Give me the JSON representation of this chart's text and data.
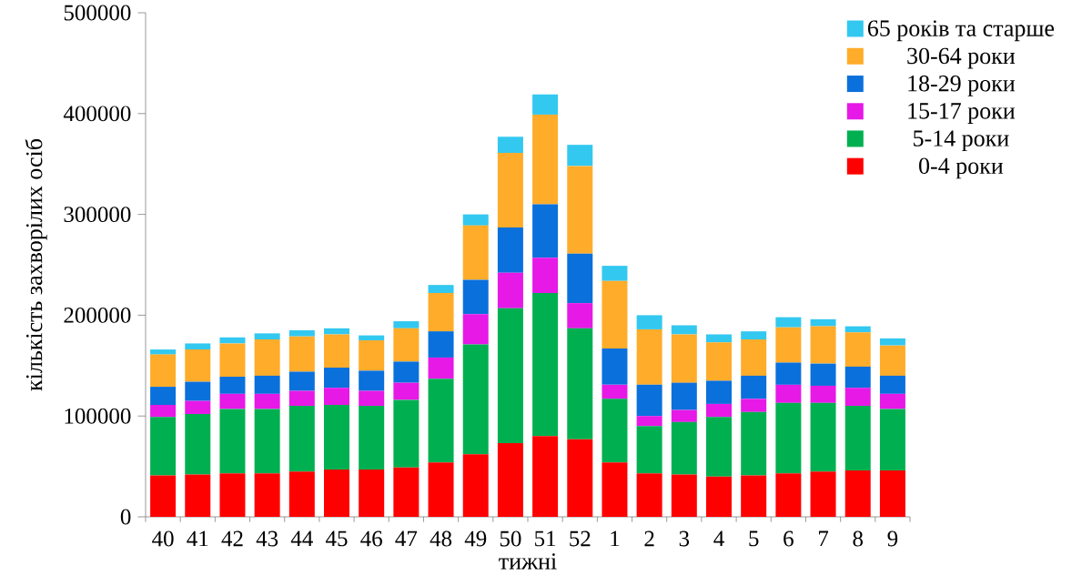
{
  "chart_data": {
    "type": "bar",
    "stacked": true,
    "xlabel": "тижні",
    "ylabel": "кількість захворілих осіб",
    "categories": [
      "40",
      "41",
      "42",
      "43",
      "44",
      "45",
      "46",
      "47",
      "48",
      "49",
      "50",
      "51",
      "52",
      "1",
      "2",
      "3",
      "4",
      "5",
      "6",
      "7",
      "8",
      "9"
    ],
    "series": [
      {
        "name": "0-4 роки",
        "color": "#ff0000",
        "values": [
          41000,
          42000,
          43000,
          43000,
          45000,
          47000,
          47000,
          49000,
          54000,
          62000,
          73000,
          80000,
          77000,
          54000,
          43000,
          42000,
          40000,
          41000,
          43000,
          45000,
          46000,
          46000
        ]
      },
      {
        "name": "5-14 роки",
        "color": "#00b050",
        "values": [
          58000,
          60000,
          64000,
          64000,
          65000,
          64000,
          63000,
          67000,
          83000,
          109000,
          134000,
          142000,
          110000,
          63000,
          47000,
          52000,
          59000,
          63000,
          70000,
          68000,
          64000,
          61000
        ]
      },
      {
        "name": "15-17 роки",
        "color": "#e619e6",
        "values": [
          12000,
          13000,
          15000,
          15000,
          15000,
          17000,
          15000,
          17000,
          21000,
          30000,
          35000,
          35000,
          25000,
          14000,
          10000,
          12000,
          13000,
          13000,
          18000,
          17000,
          18000,
          15000
        ]
      },
      {
        "name": "18-29 роки",
        "color": "#0a70dc",
        "values": [
          18000,
          19000,
          17000,
          18000,
          19000,
          20000,
          20000,
          21000,
          26000,
          34000,
          45000,
          53000,
          49000,
          36000,
          31000,
          27000,
          23000,
          23000,
          22000,
          22000,
          21000,
          18000
        ]
      },
      {
        "name": "30-64 роки",
        "color": "#ffac2a",
        "values": [
          32000,
          32000,
          33000,
          36000,
          35000,
          33000,
          30000,
          33000,
          38000,
          54000,
          74000,
          89000,
          87000,
          67000,
          55000,
          48000,
          38000,
          36000,
          35000,
          37000,
          34000,
          30000
        ]
      },
      {
        "name": "65 років та старше",
        "color": "#33c8f0",
        "values": [
          5000,
          6000,
          6000,
          6000,
          6000,
          6000,
          5000,
          7000,
          8000,
          11000,
          16000,
          20000,
          21000,
          15000,
          14000,
          9000,
          8000,
          8000,
          10000,
          7000,
          6000,
          7000
        ]
      }
    ],
    "ylim": [
      0,
      500000
    ],
    "yticks": [
      0,
      100000,
      200000,
      300000,
      400000,
      500000
    ],
    "legend": "top right"
  }
}
